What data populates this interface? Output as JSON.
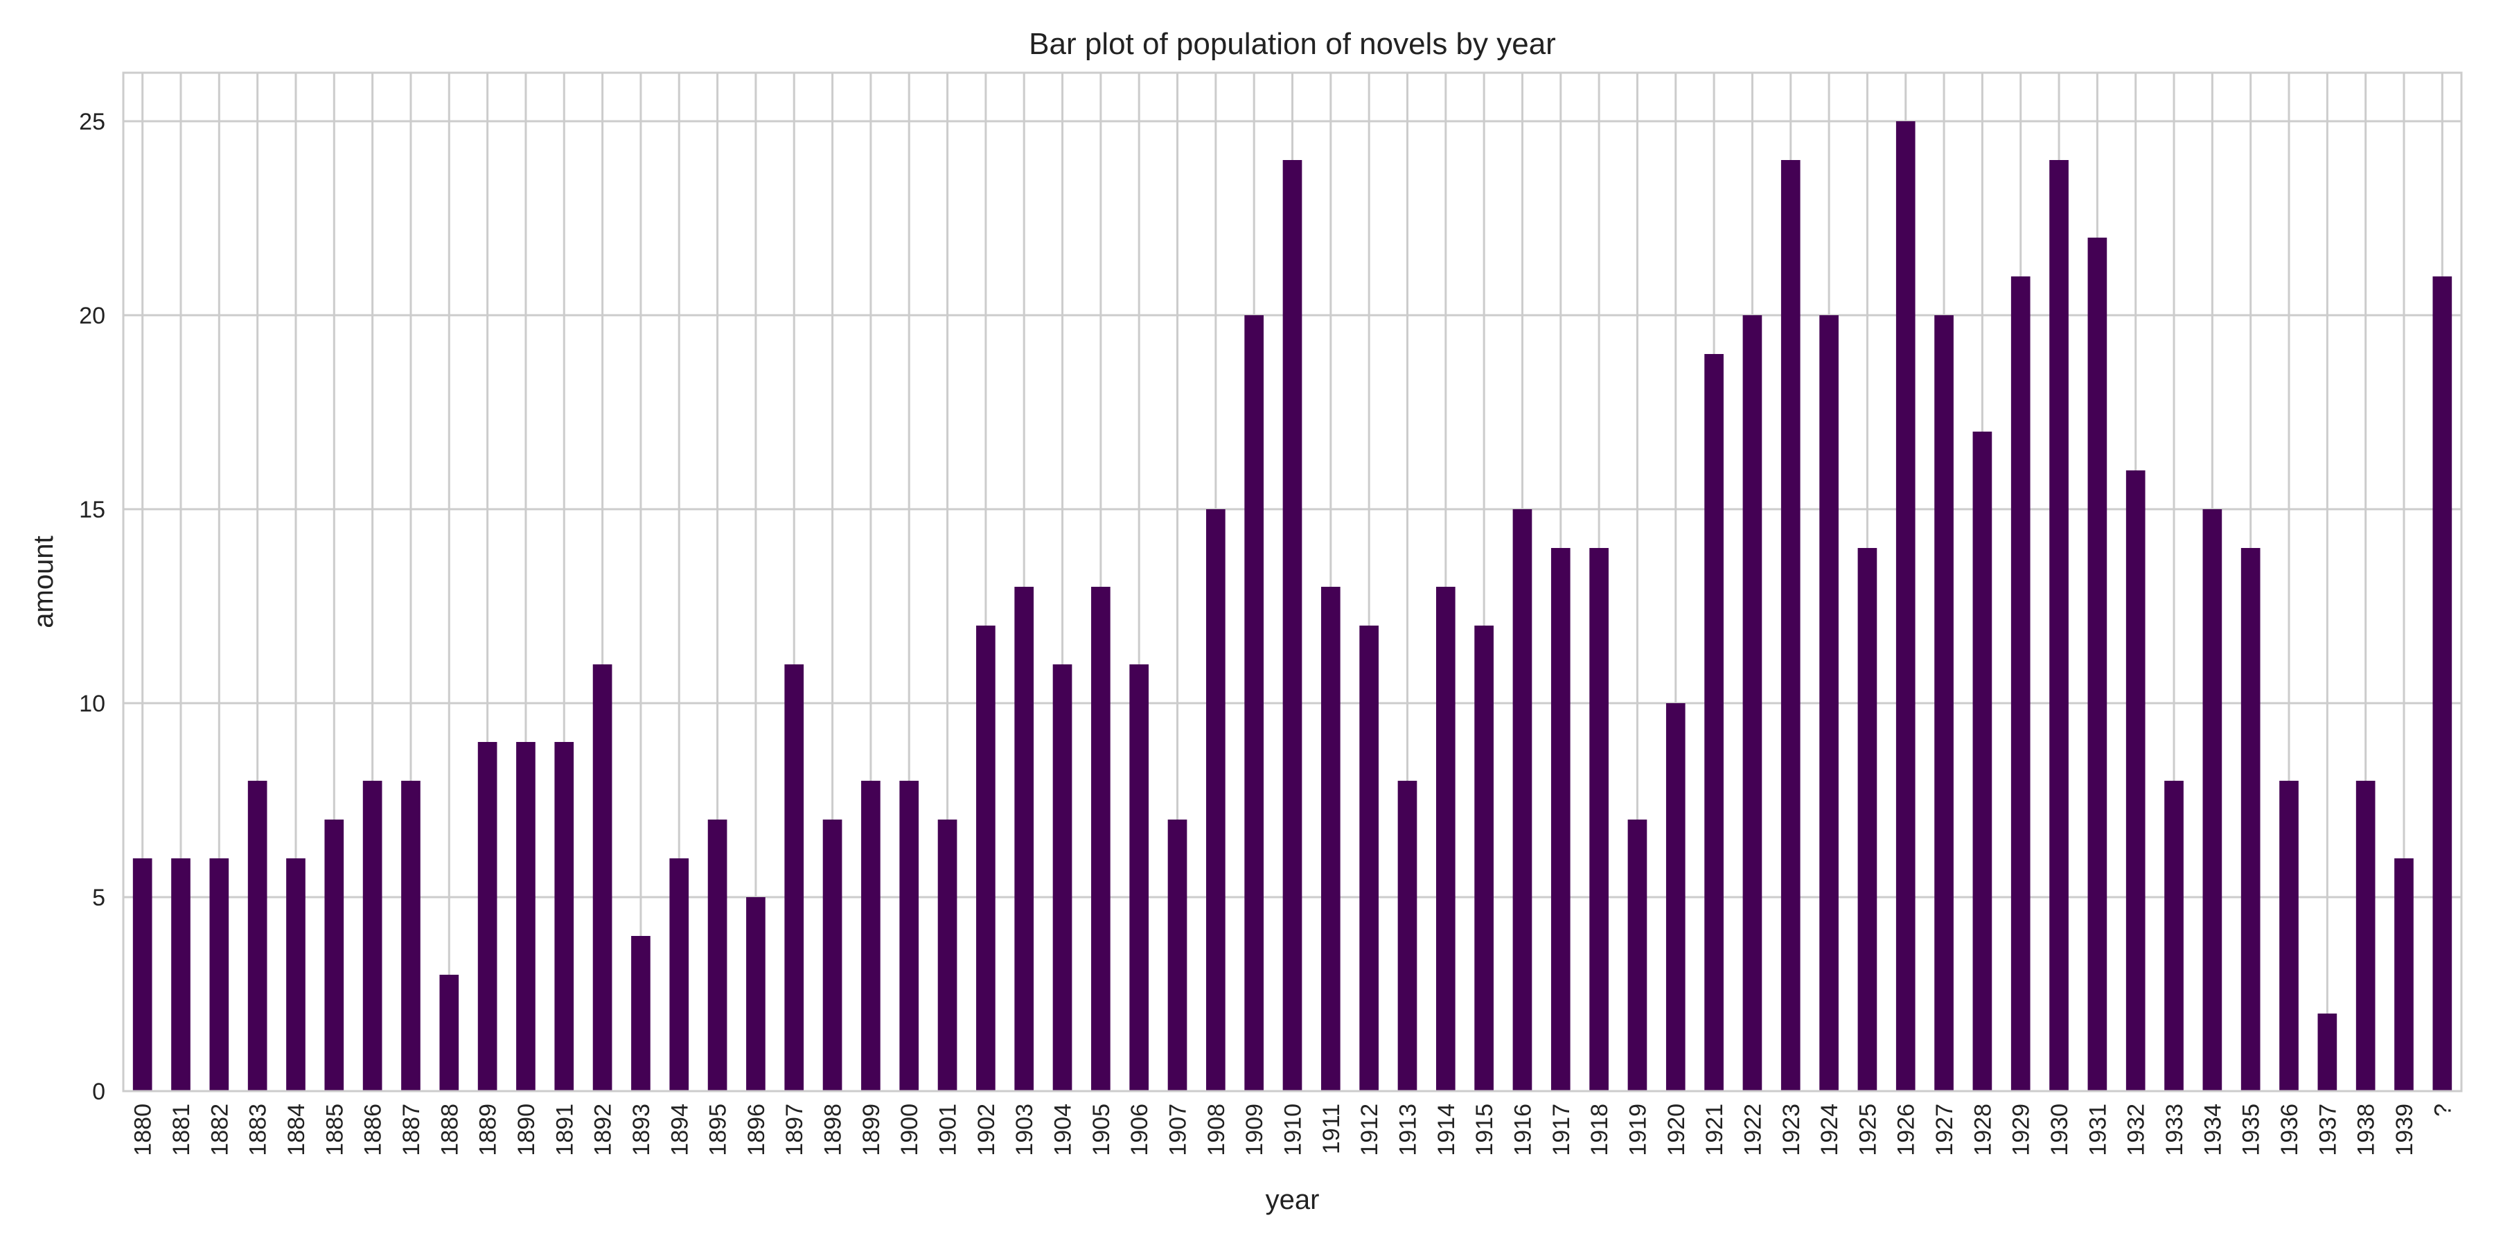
{
  "chart_data": {
    "type": "bar",
    "title": "Bar plot of population of novels by year",
    "xlabel": "year",
    "ylabel": "amount",
    "categories": [
      "1880",
      "1881",
      "1882",
      "1883",
      "1884",
      "1885",
      "1886",
      "1887",
      "1888",
      "1889",
      "1890",
      "1891",
      "1892",
      "1893",
      "1894",
      "1895",
      "1896",
      "1897",
      "1898",
      "1899",
      "1900",
      "1901",
      "1902",
      "1903",
      "1904",
      "1905",
      "1906",
      "1907",
      "1908",
      "1909",
      "1910",
      "1911",
      "1912",
      "1913",
      "1914",
      "1915",
      "1916",
      "1917",
      "1918",
      "1919",
      "1920",
      "1921",
      "1922",
      "1923",
      "1924",
      "1925",
      "1926",
      "1927",
      "1928",
      "1929",
      "1930",
      "1931",
      "1932",
      "1933",
      "1934",
      "1935",
      "1936",
      "1937",
      "1938",
      "1939",
      "?"
    ],
    "values": [
      6,
      6,
      6,
      8,
      6,
      7,
      8,
      8,
      3,
      9,
      9,
      9,
      11,
      4,
      6,
      7,
      5,
      11,
      7,
      8,
      8,
      7,
      12,
      13,
      11,
      13,
      11,
      7,
      15,
      20,
      24,
      13,
      12,
      8,
      13,
      12,
      15,
      14,
      14,
      7,
      10,
      19,
      20,
      24,
      20,
      14,
      25,
      20,
      17,
      21,
      24,
      22,
      16,
      8,
      15,
      14,
      8,
      2,
      8,
      6,
      21
    ],
    "ylim": [
      0,
      26.25
    ],
    "yticks": [
      0,
      5,
      10,
      15,
      20,
      25
    ],
    "grid": true,
    "legend": "none",
    "bar_color": "#440154"
  }
}
